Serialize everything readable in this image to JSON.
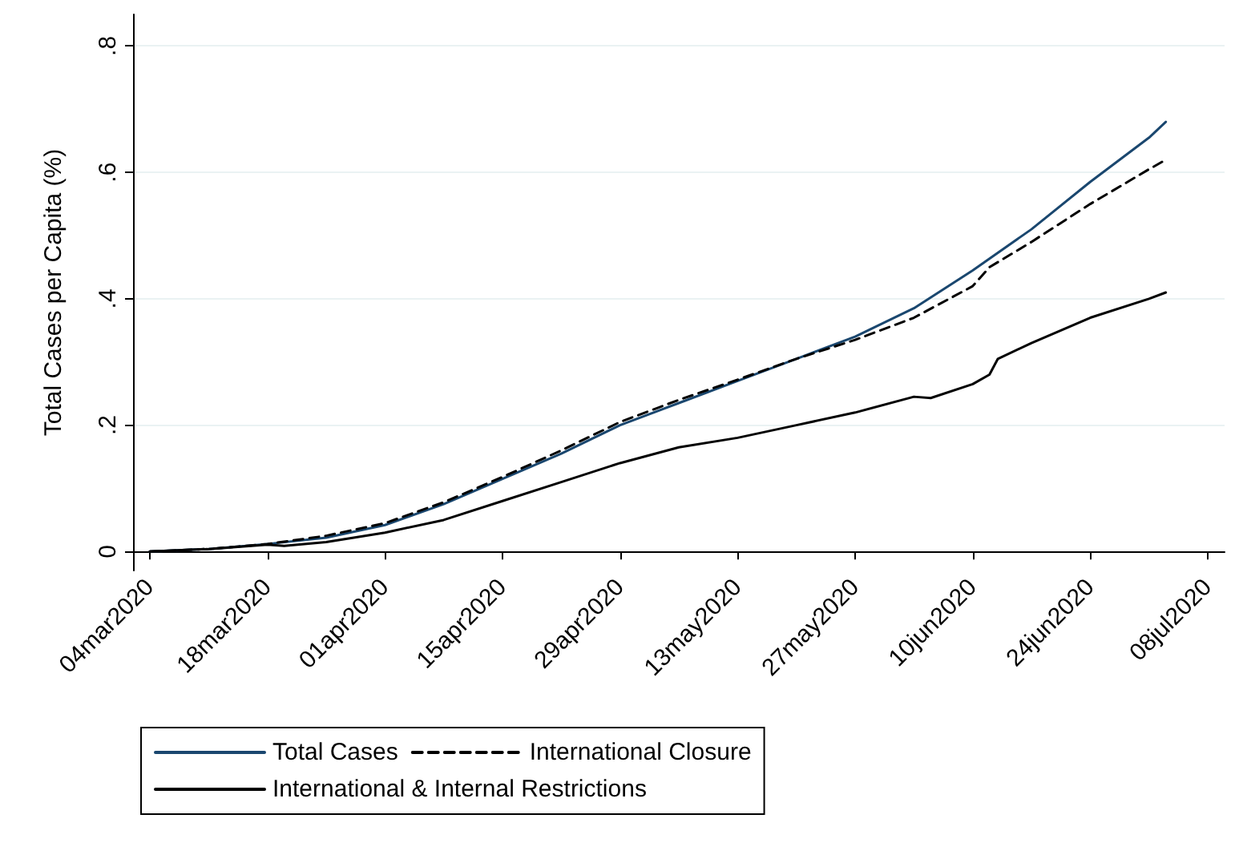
{
  "chart_data": {
    "type": "line",
    "ylabel": "Total Cases per Capita (%)",
    "ylim": [
      -0.03,
      0.85
    ],
    "yticks": [
      0,
      {
        "value": 0.2,
        "label": ".2"
      },
      {
        "value": 0.4,
        "label": ".4"
      },
      {
        "value": 0.6,
        "label": ".6"
      },
      {
        "value": 0.8,
        "label": ".8"
      }
    ],
    "xlim": [
      "2020-03-02",
      "2020-07-10"
    ],
    "xticks": [
      {
        "value": "2020-03-04",
        "label": "04mar2020"
      },
      {
        "value": "2020-03-18",
        "label": "18mar2020"
      },
      {
        "value": "2020-04-01",
        "label": "01apr2020"
      },
      {
        "value": "2020-04-15",
        "label": "15apr2020"
      },
      {
        "value": "2020-04-29",
        "label": "29apr2020"
      },
      {
        "value": "2020-05-13",
        "label": "13may2020"
      },
      {
        "value": "2020-05-27",
        "label": "27may2020"
      },
      {
        "value": "2020-06-10",
        "label": "10jun2020"
      },
      {
        "value": "2020-06-24",
        "label": "24jun2020"
      },
      {
        "value": "2020-07-08",
        "label": "08jul2020"
      }
    ],
    "grid": "y",
    "legend": "bottom",
    "marker": "none",
    "series": [
      {
        "name": "Total Cases",
        "color": "#1a476f",
        "line_style": "solid",
        "x": [
          "2020-03-04",
          "2020-03-11",
          "2020-03-18",
          "2020-03-25",
          "2020-04-01",
          "2020-04-08",
          "2020-04-15",
          "2020-04-22",
          "2020-04-29",
          "2020-05-06",
          "2020-05-13",
          "2020-05-20",
          "2020-05-27",
          "2020-06-03",
          "2020-06-10",
          "2020-06-17",
          "2020-06-24",
          "2020-07-01",
          "2020-07-03"
        ],
        "values": [
          0,
          0.004,
          0.012,
          0.022,
          0.042,
          0.075,
          0.115,
          0.155,
          0.2,
          0.235,
          0.27,
          0.305,
          0.34,
          0.385,
          0.445,
          0.51,
          0.585,
          0.655,
          0.68
        ]
      },
      {
        "name": "International Closure",
        "color": "#000000",
        "line_style": "dashed",
        "x": [
          "2020-03-04",
          "2020-03-11",
          "2020-03-18",
          "2020-03-25",
          "2020-04-01",
          "2020-04-08",
          "2020-04-15",
          "2020-04-22",
          "2020-04-29",
          "2020-05-06",
          "2020-05-13",
          "2020-05-20",
          "2020-05-27",
          "2020-06-03",
          "2020-06-10",
          "2020-06-12",
          "2020-06-17",
          "2020-06-24",
          "2020-07-01",
          "2020-07-03"
        ],
        "values": [
          0,
          0.004,
          0.012,
          0.025,
          0.045,
          0.078,
          0.118,
          0.16,
          0.205,
          0.24,
          0.272,
          0.305,
          0.335,
          0.37,
          0.42,
          0.45,
          0.49,
          0.55,
          0.605,
          0.62
        ]
      },
      {
        "name": "International & Internal Restrictions",
        "color": "#000000",
        "line_style": "solid",
        "x": [
          "2020-03-04",
          "2020-03-11",
          "2020-03-18",
          "2020-03-20",
          "2020-03-25",
          "2020-04-01",
          "2020-04-08",
          "2020-04-15",
          "2020-04-22",
          "2020-04-29",
          "2020-05-06",
          "2020-05-13",
          "2020-05-20",
          "2020-05-27",
          "2020-06-03",
          "2020-06-05",
          "2020-06-10",
          "2020-06-12",
          "2020-06-13",
          "2020-06-17",
          "2020-06-24",
          "2020-07-01",
          "2020-07-03"
        ],
        "values": [
          0,
          0.004,
          0.011,
          0.009,
          0.015,
          0.03,
          0.05,
          0.08,
          0.11,
          0.14,
          0.165,
          0.18,
          0.2,
          0.22,
          0.245,
          0.243,
          0.265,
          0.28,
          0.305,
          0.33,
          0.37,
          0.4,
          0.41
        ]
      }
    ]
  }
}
